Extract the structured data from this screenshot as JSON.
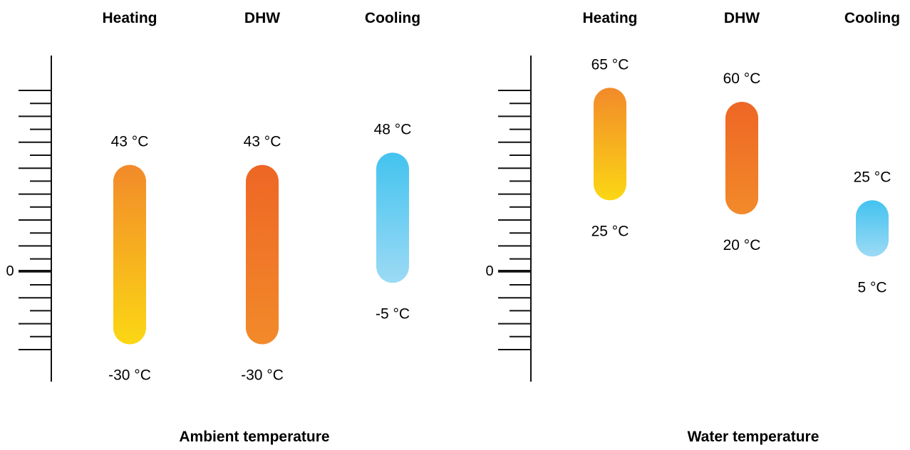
{
  "chart_data": [
    {
      "type": "range_bar",
      "title": "Ambient temperature",
      "unit": "°C",
      "axis_zero_label": "0",
      "categories": [
        "Heating",
        "DHW",
        "Cooling"
      ],
      "series": [
        {
          "category": "Heating",
          "min": -30,
          "max": 43,
          "min_label": "-30 °C",
          "max_label": "43 °C",
          "gradient": [
            "#f28a2a",
            "#fbd714"
          ]
        },
        {
          "category": "DHW",
          "min": -30,
          "max": 43,
          "min_label": "-30 °C",
          "max_label": "43 °C",
          "gradient": [
            "#ee6625",
            "#f28a2a"
          ]
        },
        {
          "category": "Cooling",
          "min": -5,
          "max": 48,
          "min_label": "-5 °C",
          "max_label": "48 °C",
          "gradient": [
            "#43c3ef",
            "#9cdaf5"
          ]
        }
      ]
    },
    {
      "type": "range_bar",
      "title": "Water temperature",
      "unit": "°C",
      "axis_zero_label": "0",
      "categories": [
        "Heating",
        "DHW",
        "Cooling"
      ],
      "series": [
        {
          "category": "Heating",
          "min": 25,
          "max": 65,
          "min_label": "25 °C",
          "max_label": "65 °C",
          "gradient": [
            "#f28a2a",
            "#fbd714"
          ]
        },
        {
          "category": "DHW",
          "min": 20,
          "max": 60,
          "min_label": "20 °C",
          "max_label": "60 °C",
          "gradient": [
            "#ee6625",
            "#f28a2a"
          ]
        },
        {
          "category": "Cooling",
          "min": 5,
          "max": 25,
          "min_label": "5 °C",
          "max_label": "25 °C",
          "gradient": [
            "#43c3ef",
            "#9cdaf5"
          ]
        }
      ]
    }
  ]
}
